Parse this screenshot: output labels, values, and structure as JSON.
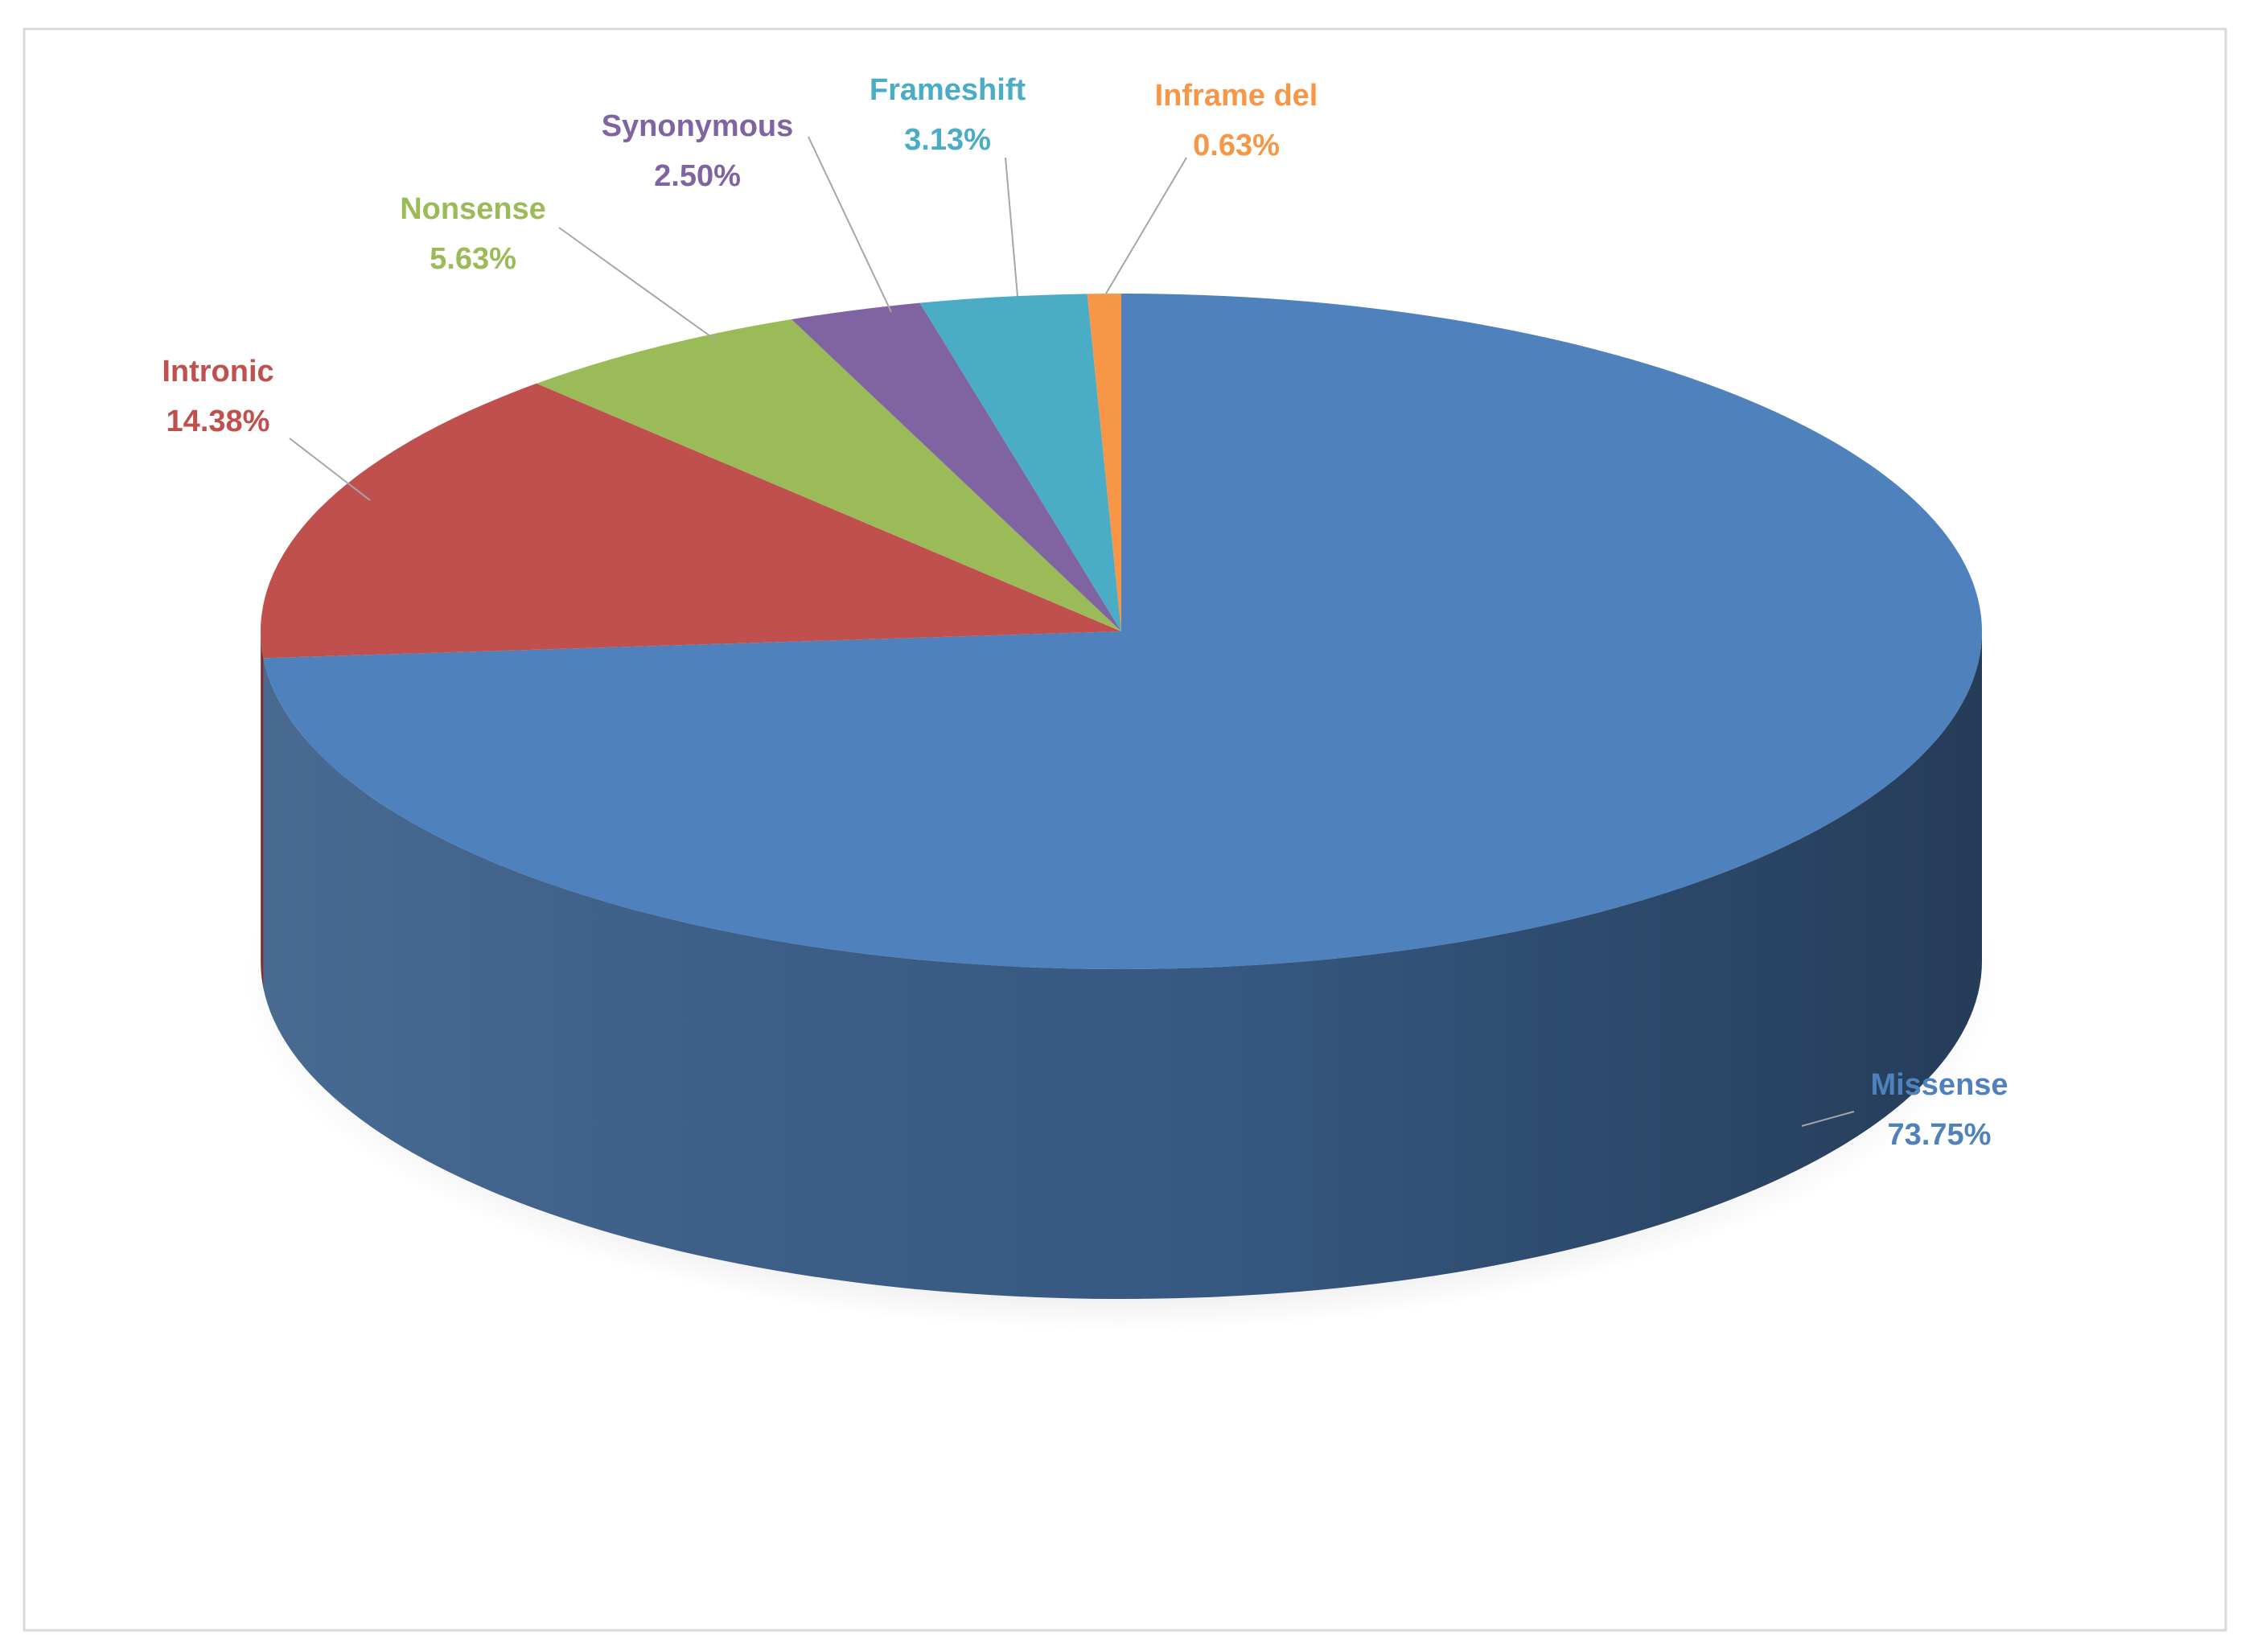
{
  "chart_data": {
    "type": "pie3d",
    "categories": [
      "Missense",
      "Intronic",
      "Nonsense",
      "Synonymous",
      "Frameshift",
      "Inframe del"
    ],
    "values": [
      73.75,
      14.38,
      5.63,
      2.5,
      3.13,
      0.63
    ],
    "value_labels": [
      "73.75%",
      "14.38%",
      "5.63%",
      "2.50%",
      "3.13%",
      "0.63%"
    ],
    "colors": [
      "#4f81bd",
      "#c0504d",
      "#9bbb59",
      "#8064a2",
      "#4bacc6",
      "#f79646"
    ]
  }
}
